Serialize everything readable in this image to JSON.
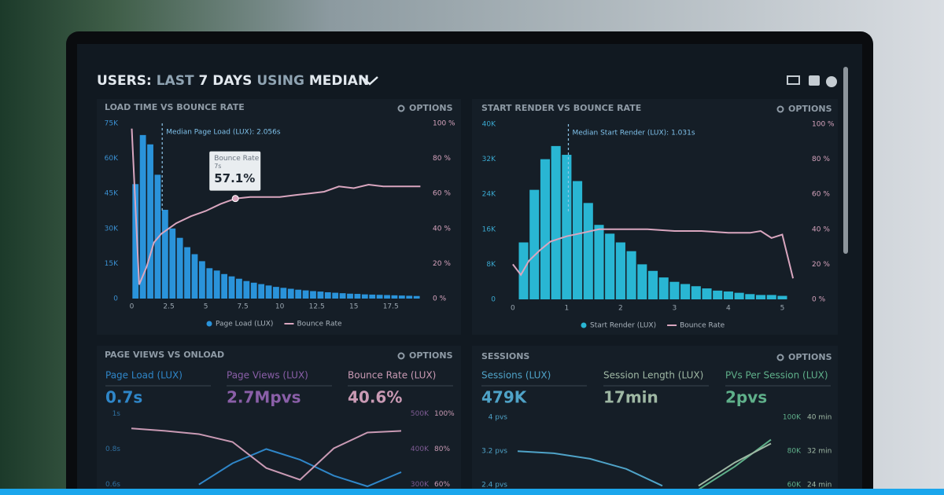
{
  "header": {
    "title": [
      "USERS:",
      "LAST",
      "7 DAYS",
      "USING",
      "MEDIAN"
    ]
  },
  "chart_data": [
    {
      "type": "histogram",
      "title": "LOAD TIME VS BOUNCE RATE",
      "options": "OPTIONS",
      "legend": "bottom",
      "bins": [
        0,
        0.5,
        1,
        1.5,
        2,
        2.5,
        3,
        3.5,
        4,
        4.5,
        5,
        5.5,
        6,
        6.5,
        7,
        7.5,
        8,
        8.5,
        9,
        9.5,
        10,
        10.5,
        11,
        11.5,
        12,
        12.5,
        13,
        13.5,
        14,
        14.5,
        15,
        15.5,
        16,
        16.5,
        17,
        17.5,
        18,
        18.5,
        19,
        19.5
      ],
      "xlim": [
        -0.4,
        19.8
      ],
      "xticks": [
        0,
        2.5,
        5,
        7.5,
        10,
        12.5,
        15,
        17.5
      ],
      "ylim": [
        0,
        75000
      ],
      "yticks": [
        0,
        {
          "value": 15000,
          "label": "15K"
        },
        {
          "value": 30000,
          "label": "30K"
        },
        {
          "value": 45000,
          "label": "45K"
        },
        {
          "value": 60000,
          "label": "60K"
        },
        {
          "value": 75000,
          "label": "75K"
        }
      ],
      "y2lim": [
        0,
        100
      ],
      "y2ticks": [
        {
          "value": 0,
          "label": "0 %"
        },
        {
          "value": 20,
          "label": "20 %"
        },
        {
          "value": 40,
          "label": "40 %"
        },
        {
          "value": 60,
          "label": "60 %"
        },
        {
          "value": 80,
          "label": "80 %"
        },
        {
          "value": 100,
          "label": "100 %"
        }
      ],
      "series": [
        {
          "name": "Page Load (LUX)",
          "color": "#2a93da",
          "values": [
            49000,
            70000,
            66000,
            53000,
            38000,
            30000,
            26000,
            22000,
            19000,
            16000,
            13000,
            12000,
            10500,
            9500,
            8500,
            7500,
            6800,
            6200,
            5600,
            5000,
            4600,
            4200,
            3800,
            3500,
            3200,
            3000,
            2700,
            2500,
            2300,
            2100,
            2000,
            1800,
            1700,
            1600,
            1500,
            1400,
            1300,
            1200,
            1100
          ]
        },
        {
          "name": "Bounce Rate",
          "color": "#d9a6bf",
          "type": "line",
          "axis": "y2",
          "x": [
            0,
            0.5,
            1,
            1.5,
            2,
            2.5,
            3,
            4,
            5,
            6,
            7,
            8,
            9,
            10,
            11,
            12,
            13,
            14,
            15,
            16,
            17,
            18,
            19.5
          ],
          "values": [
            97,
            8,
            18,
            32,
            37,
            40,
            43,
            47,
            50,
            54,
            57.1,
            58,
            58,
            58,
            59,
            60,
            61,
            64,
            63,
            65,
            64,
            64,
            64
          ]
        }
      ],
      "annotation": {
        "text": "Median Page Load (LUX): 2.056s",
        "x": 2.056
      },
      "tooltip": {
        "title": "Bounce Rate",
        "x_label": "7s",
        "value_label": "57.1%",
        "x": 7,
        "value": 57.1
      }
    },
    {
      "type": "histogram",
      "title": "START RENDER VS BOUNCE RATE",
      "options": "OPTIONS",
      "legend": "bottom",
      "bins": [
        0.1,
        0.3,
        0.5,
        0.7,
        0.9,
        1.1,
        1.3,
        1.5,
        1.7,
        1.9,
        2.1,
        2.3,
        2.5,
        2.7,
        2.9,
        3.1,
        3.3,
        3.5,
        3.7,
        3.9,
        4.1,
        4.3,
        4.5,
        4.7,
        4.9,
        5.1
      ],
      "xlim": [
        -0.1,
        5.3
      ],
      "xticks": [
        0,
        1,
        2,
        3,
        4,
        5
      ],
      "ylim": [
        0,
        40000
      ],
      "yticks": [
        0,
        {
          "value": 8000,
          "label": "8K"
        },
        {
          "value": 16000,
          "label": "16K"
        },
        {
          "value": 24000,
          "label": "24K"
        },
        {
          "value": 32000,
          "label": "32K"
        },
        {
          "value": 40000,
          "label": "40K"
        }
      ],
      "y2lim": [
        0,
        100
      ],
      "y2ticks": [
        {
          "value": 0,
          "label": "0 %"
        },
        {
          "value": 20,
          "label": "20 %"
        },
        {
          "value": 40,
          "label": "40 %"
        },
        {
          "value": 60,
          "label": "60 %"
        },
        {
          "value": 80,
          "label": "80 %"
        },
        {
          "value": 100,
          "label": "100 %"
        }
      ],
      "series": [
        {
          "name": "Start Render (LUX)",
          "color": "#29b6d3",
          "values": [
            13000,
            25000,
            32000,
            35000,
            33000,
            27000,
            22000,
            17000,
            15000,
            13000,
            11000,
            8000,
            6500,
            5000,
            4000,
            3500,
            3000,
            2500,
            2000,
            1800,
            1500,
            1200,
            1000,
            1000,
            800
          ]
        },
        {
          "name": "Bounce Rate",
          "color": "#d9a6bf",
          "type": "line",
          "axis": "y2",
          "x": [
            0,
            0.15,
            0.3,
            0.5,
            0.7,
            1,
            1.3,
            1.6,
            2,
            2.5,
            3,
            3.5,
            4,
            4.4,
            4.6,
            4.8,
            5,
            5.2
          ],
          "values": [
            20,
            14,
            22,
            28,
            33,
            36,
            38,
            40,
            40,
            40,
            39,
            39,
            38,
            38,
            39,
            35,
            37,
            12
          ]
        }
      ],
      "annotation": {
        "text": "Median Start Render (LUX): 1.031s",
        "x": 1.031
      }
    },
    {
      "type": "line",
      "title": "PAGE VIEWS VS ONLOAD",
      "options": "OPTIONS",
      "metrics": [
        {
          "label": "Page Load (LUX)",
          "value": "0.7s",
          "color": "#2f86c8"
        },
        {
          "label": "Page Views (LUX)",
          "value": "2.7Mpvs",
          "color": "#8a5fa8"
        },
        {
          "label": "Bounce Rate (LUX)",
          "value": "40.6%",
          "color": "#c99ab4"
        }
      ],
      "x": [
        0,
        1,
        2,
        3,
        4,
        5,
        6,
        7,
        8
      ],
      "xlim": [
        0,
        8
      ],
      "ylim": [
        0.55,
        1.05
      ],
      "yticks": [
        {
          "value": 1,
          "label": "1s"
        },
        {
          "value": 0.8,
          "label": "0.8s"
        },
        {
          "value": 0.6,
          "label": "0.6s"
        }
      ],
      "y2lim": [
        275000,
        525000
      ],
      "y2ticks": [
        {
          "value": 500000,
          "label": "500K"
        },
        {
          "value": 400000,
          "label": "400K"
        },
        {
          "value": 300000,
          "label": "300K"
        }
      ],
      "y3lim": [
        55,
        105
      ],
      "y3ticks": [
        {
          "value": 100,
          "label": "100%"
        },
        {
          "value": 80,
          "label": "80%"
        },
        {
          "value": 60,
          "label": "60%"
        }
      ],
      "series": [
        {
          "color": "#2f86c8",
          "values": [
            null,
            null,
            0.6,
            0.72,
            0.8,
            0.74,
            0.65,
            0.59,
            0.67
          ]
        },
        {
          "color": "#c99ab4",
          "axis": "y3",
          "values": [
            91.6,
            90.2,
            88.4,
            84.0,
            69.3,
            62.7,
            80.4,
            89.3,
            90.2
          ]
        }
      ]
    },
    {
      "type": "line",
      "title": "SESSIONS",
      "options": "OPTIONS",
      "metrics": [
        {
          "label": "Sessions (LUX)",
          "value": "479K",
          "color": "#4fa3c8"
        },
        {
          "label": "Session Length (LUX)",
          "value": "17min",
          "color": "#9fb8a4"
        },
        {
          "label": "PVs Per Session (LUX)",
          "value": "2pvs",
          "color": "#5fb08a"
        }
      ],
      "x": [
        0,
        1,
        2,
        3,
        4,
        5,
        6,
        7,
        8
      ],
      "xlim": [
        0,
        8
      ],
      "ylim": [
        2.2,
        4.3
      ],
      "yticks": [
        {
          "value": 4,
          "label": "4 pvs"
        },
        {
          "value": 3.2,
          "label": "3.2 pvs"
        },
        {
          "value": 2.4,
          "label": "2.4 pvs"
        }
      ],
      "y2lim": [
        55000,
        107500
      ],
      "y2ticks": [
        {
          "value": 100000,
          "label": "100K"
        },
        {
          "value": 80000,
          "label": "80K"
        },
        {
          "value": 60000,
          "label": "60K"
        }
      ],
      "y3lim": [
        22,
        43
      ],
      "y3ticks": [
        {
          "value": 40,
          "label": "40 min"
        },
        {
          "value": 32,
          "label": "32 min"
        },
        {
          "value": 24,
          "label": "24 min"
        }
      ],
      "series": [
        {
          "color": "#4fa3c8",
          "values": [
            null,
            3.2,
            3.15,
            3.02,
            2.78,
            2.38,
            null,
            null,
            null
          ]
        },
        {
          "color": "#5fb08a",
          "axis": "y2",
          "values": [
            null,
            null,
            null,
            null,
            null,
            null,
            57300,
            70900,
            86800
          ]
        },
        {
          "color": "#9fb8a4",
          "axis": "y3",
          "values": [
            null,
            null,
            null,
            null,
            null,
            null,
            23.8,
            29.3,
            33.8
          ]
        }
      ]
    }
  ]
}
